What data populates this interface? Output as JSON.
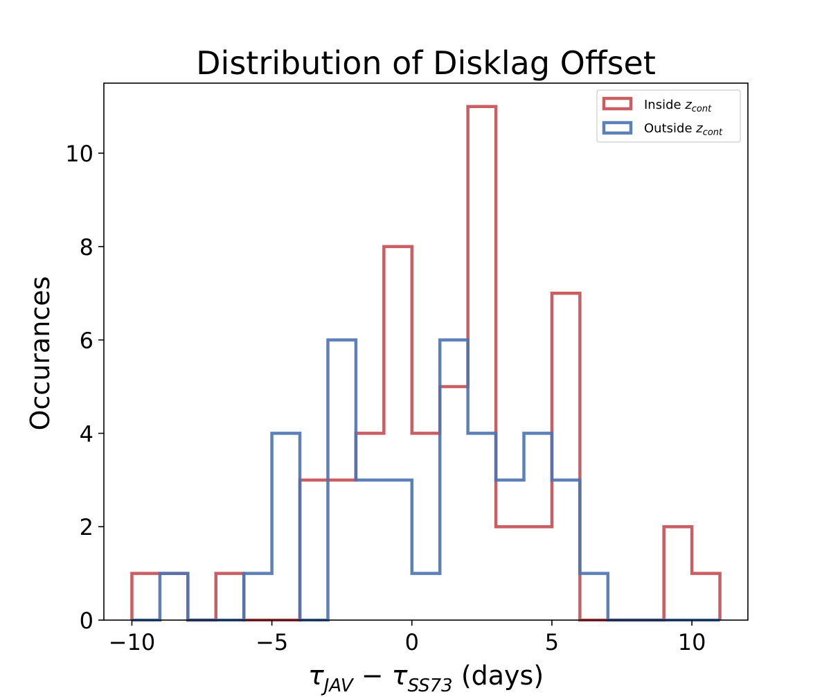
{
  "chart_data": {
    "type": "histogram-step",
    "title": "Distribution of Disklag Offset",
    "xlabel": {
      "tau": "τ",
      "sub1": "JAV",
      "minus": " − ",
      "sub2": "SS73",
      "unit": " (days)"
    },
    "ylabel": "Occurances",
    "xlim": [
      -11,
      12
    ],
    "ylim": [
      0,
      11.5
    ],
    "xticks": [
      -10,
      -5,
      0,
      5,
      10
    ],
    "xtick_labels": [
      "−10",
      "−5",
      "0",
      "5",
      "10"
    ],
    "yticks": [
      0,
      2,
      4,
      6,
      8,
      10
    ],
    "ytick_labels": [
      "0",
      "2",
      "4",
      "6",
      "8",
      "10"
    ],
    "bin_edges": [
      -10,
      -9,
      -8,
      -7,
      -6,
      -5,
      -4,
      -3,
      -2,
      -1,
      0,
      1,
      2,
      3,
      4,
      5,
      6,
      7,
      8,
      9,
      10,
      11
    ],
    "legend_position": "top-right",
    "series": [
      {
        "name_prefix": "Inside ",
        "name_math": "z",
        "name_sub": "cont",
        "color": "#c44e52",
        "counts": [
          1,
          1,
          0,
          1,
          0,
          0,
          3,
          3,
          4,
          8,
          4,
          5,
          11,
          2,
          2,
          7,
          0,
          0,
          0,
          2,
          1
        ]
      },
      {
        "name_prefix": "Outside ",
        "name_math": "z",
        "name_sub": "cont",
        "color": "#4c72b0",
        "counts": [
          0,
          1,
          0,
          0,
          1,
          4,
          0,
          6,
          3,
          3,
          1,
          6,
          4,
          3,
          4,
          3,
          1,
          0,
          0,
          0,
          0
        ]
      }
    ]
  }
}
